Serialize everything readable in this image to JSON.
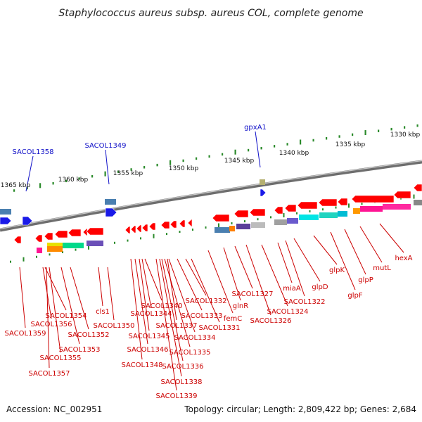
{
  "title": "Staphylococcus aureus subsp. aureus COL, complete genome",
  "accession": "Accession: NC_002951",
  "summary": "Topology: circular; Length: 2,809,422 bp; Genes: 2,684",
  "ticks": [
    "1365 kbp",
    "1360 kbp",
    "1355 kbp",
    "1350 kbp",
    "1345 kbp",
    "1340 kbp",
    "1335 kbp",
    "1330 kbp"
  ],
  "forward_labels": [
    "SACOL1358",
    "SACOL1349",
    "gpxA1"
  ],
  "reverse_labels": [
    "SACOL1359",
    "SACOL1356",
    "SACOL1354",
    "SACOL1357",
    "SACOL1355",
    "SACOL1353",
    "SACOL1352",
    "cls1",
    "SACOL1350",
    "SACOL1348",
    "SACOL1346",
    "SACOL1345",
    "SACOL1344",
    "SACOL1340",
    "SACOL1339",
    "SACOL1338",
    "SACOL1336",
    "SACOL1335",
    "SACOL1337",
    "SACOL1334",
    "SACOL1333",
    "SACOL1332",
    "SACOL1331",
    "femC",
    "glnR",
    "SACOL1327",
    "SACOL1326",
    "SACOL1324",
    "miaA",
    "SACOL1322",
    "glpD",
    "glpK",
    "glpF",
    "glpP",
    "mutL",
    "hexA"
  ],
  "colors": {
    "forward": "#1010c8",
    "reverse": "#cc0000",
    "backbone": "#7a7a7a",
    "tick_mark": "#2a8a2a"
  }
}
